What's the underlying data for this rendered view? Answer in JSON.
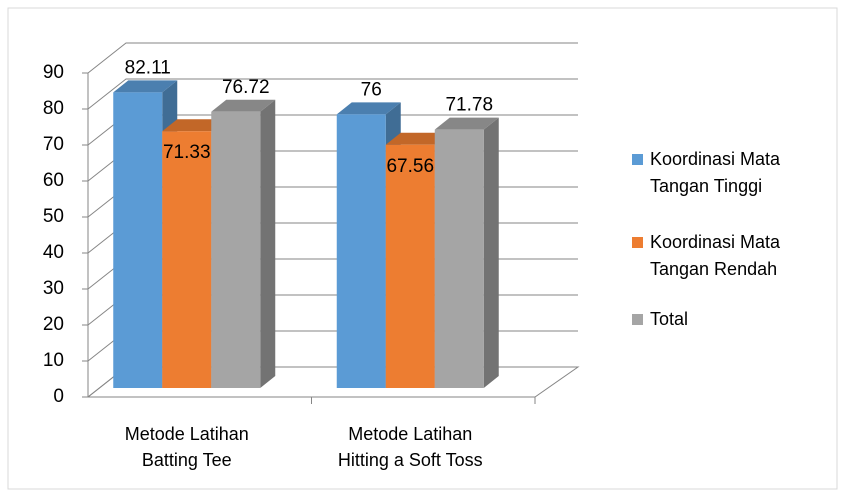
{
  "chart_data": {
    "type": "bar3d",
    "categories": [
      "Metode Latihan\nBatting Tee",
      "Metode Latihan\nHitting a Soft Toss"
    ],
    "series": [
      {
        "name": "Koordinasi Mata Tangan Tinggi",
        "color": "#5b9bd5",
        "values": [
          82.11,
          76
        ]
      },
      {
        "name": "Koordinasi Mata Tangan Rendah",
        "color": "#ed7d31",
        "values": [
          71.33,
          67.56
        ]
      },
      {
        "name": "Total",
        "color": "#a5a5a5",
        "values": [
          76.72,
          71.78
        ]
      }
    ],
    "ylim": [
      0,
      90
    ],
    "yticks": [
      0,
      10,
      20,
      30,
      40,
      50,
      60,
      70,
      80,
      90
    ],
    "grid": true,
    "legend": "right"
  }
}
